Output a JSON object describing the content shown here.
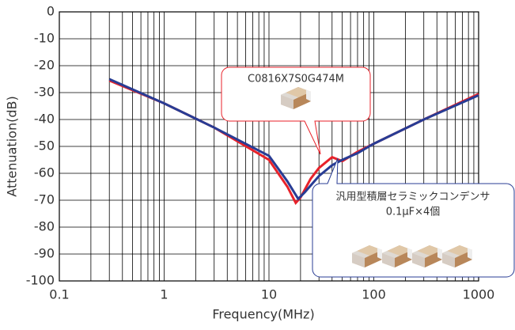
{
  "chart_data": {
    "type": "line",
    "x_label": "Frequency(MHz)",
    "y_label": "Attenuation(dB)",
    "log_x": true,
    "grid": true,
    "xlim": [
      0.1,
      1000
    ],
    "xticks": [
      0.1,
      1,
      10,
      100,
      1000
    ],
    "xminorticks": [
      0.2,
      0.3,
      0.4,
      0.5,
      0.6,
      0.7,
      0.8,
      0.9,
      2,
      3,
      4,
      5,
      6,
      7,
      8,
      9,
      20,
      30,
      40,
      50,
      60,
      70,
      80,
      90,
      200,
      300,
      400,
      500,
      600,
      700,
      800,
      900
    ],
    "ylim": [
      -100,
      0
    ],
    "yticks": [
      -100,
      -90,
      -80,
      -70,
      -60,
      -50,
      -40,
      -30,
      -20,
      -10,
      0
    ],
    "series": [
      {
        "name": "C0816X7S0G474M",
        "color": "#e8222a",
        "x": [
          0.3,
          1,
          3,
          10,
          15,
          18,
          20,
          25,
          30,
          40,
          50,
          70,
          100,
          300,
          1000
        ],
        "values": [
          -25.5,
          -34,
          -43,
          -55,
          -65,
          -71,
          -69,
          -62,
          -58,
          -54,
          -55.5,
          -52,
          -49,
          -40,
          -30.5
        ]
      },
      {
        "name": "汎用型積層セラミックコンデンサ",
        "note": "0.1μF×4個",
        "color": "#283c94",
        "x": [
          0.3,
          1,
          3,
          10,
          15,
          19,
          22,
          30,
          40,
          50,
          70,
          100,
          300,
          1000
        ],
        "values": [
          -25,
          -34,
          -43,
          -53.5,
          -63,
          -69.5,
          -67,
          -61,
          -57,
          -55,
          -52.5,
          -49,
          -40,
          -31
        ]
      }
    ]
  }
}
